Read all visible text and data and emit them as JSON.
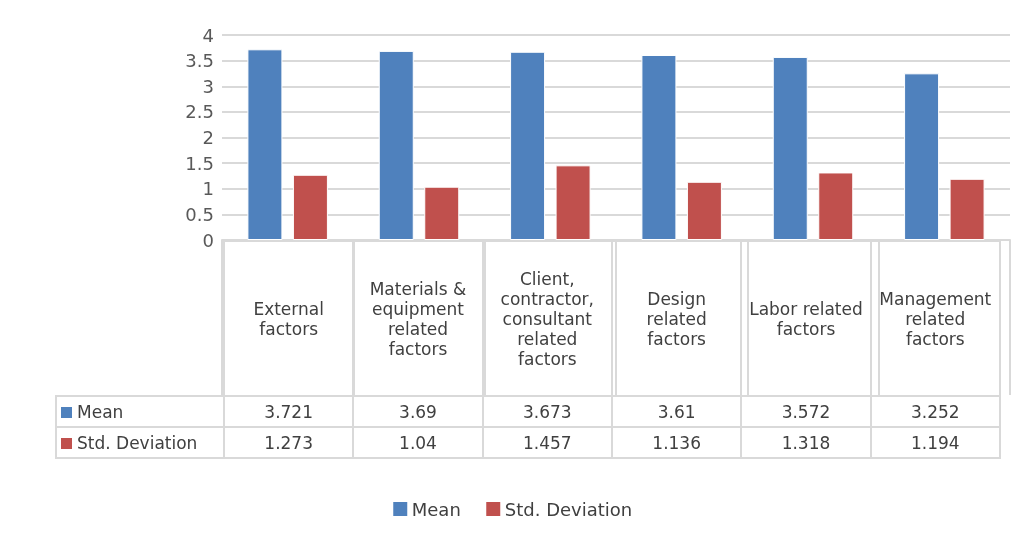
{
  "chart_data": {
    "type": "bar",
    "categories": [
      "External factors",
      "Materials & equipment related factors",
      "Client, contractor, consultant related factors",
      "Design related factors",
      "Labor related factors",
      "Management related factors"
    ],
    "series": [
      {
        "name": "Mean",
        "color": "#4f81bd",
        "values": [
          3.721,
          3.69,
          3.673,
          3.61,
          3.572,
          3.252
        ]
      },
      {
        "name": "Std. Deviation",
        "color": "#c0504d",
        "values": [
          1.273,
          1.04,
          1.457,
          1.136,
          1.318,
          1.194
        ]
      }
    ],
    "ylim": [
      0,
      4
    ],
    "yticks": [
      0,
      0.5,
      1,
      1.5,
      2,
      2.5,
      3,
      3.5,
      4
    ],
    "grid": "y",
    "legend": "bottom",
    "data_labels": true
  }
}
